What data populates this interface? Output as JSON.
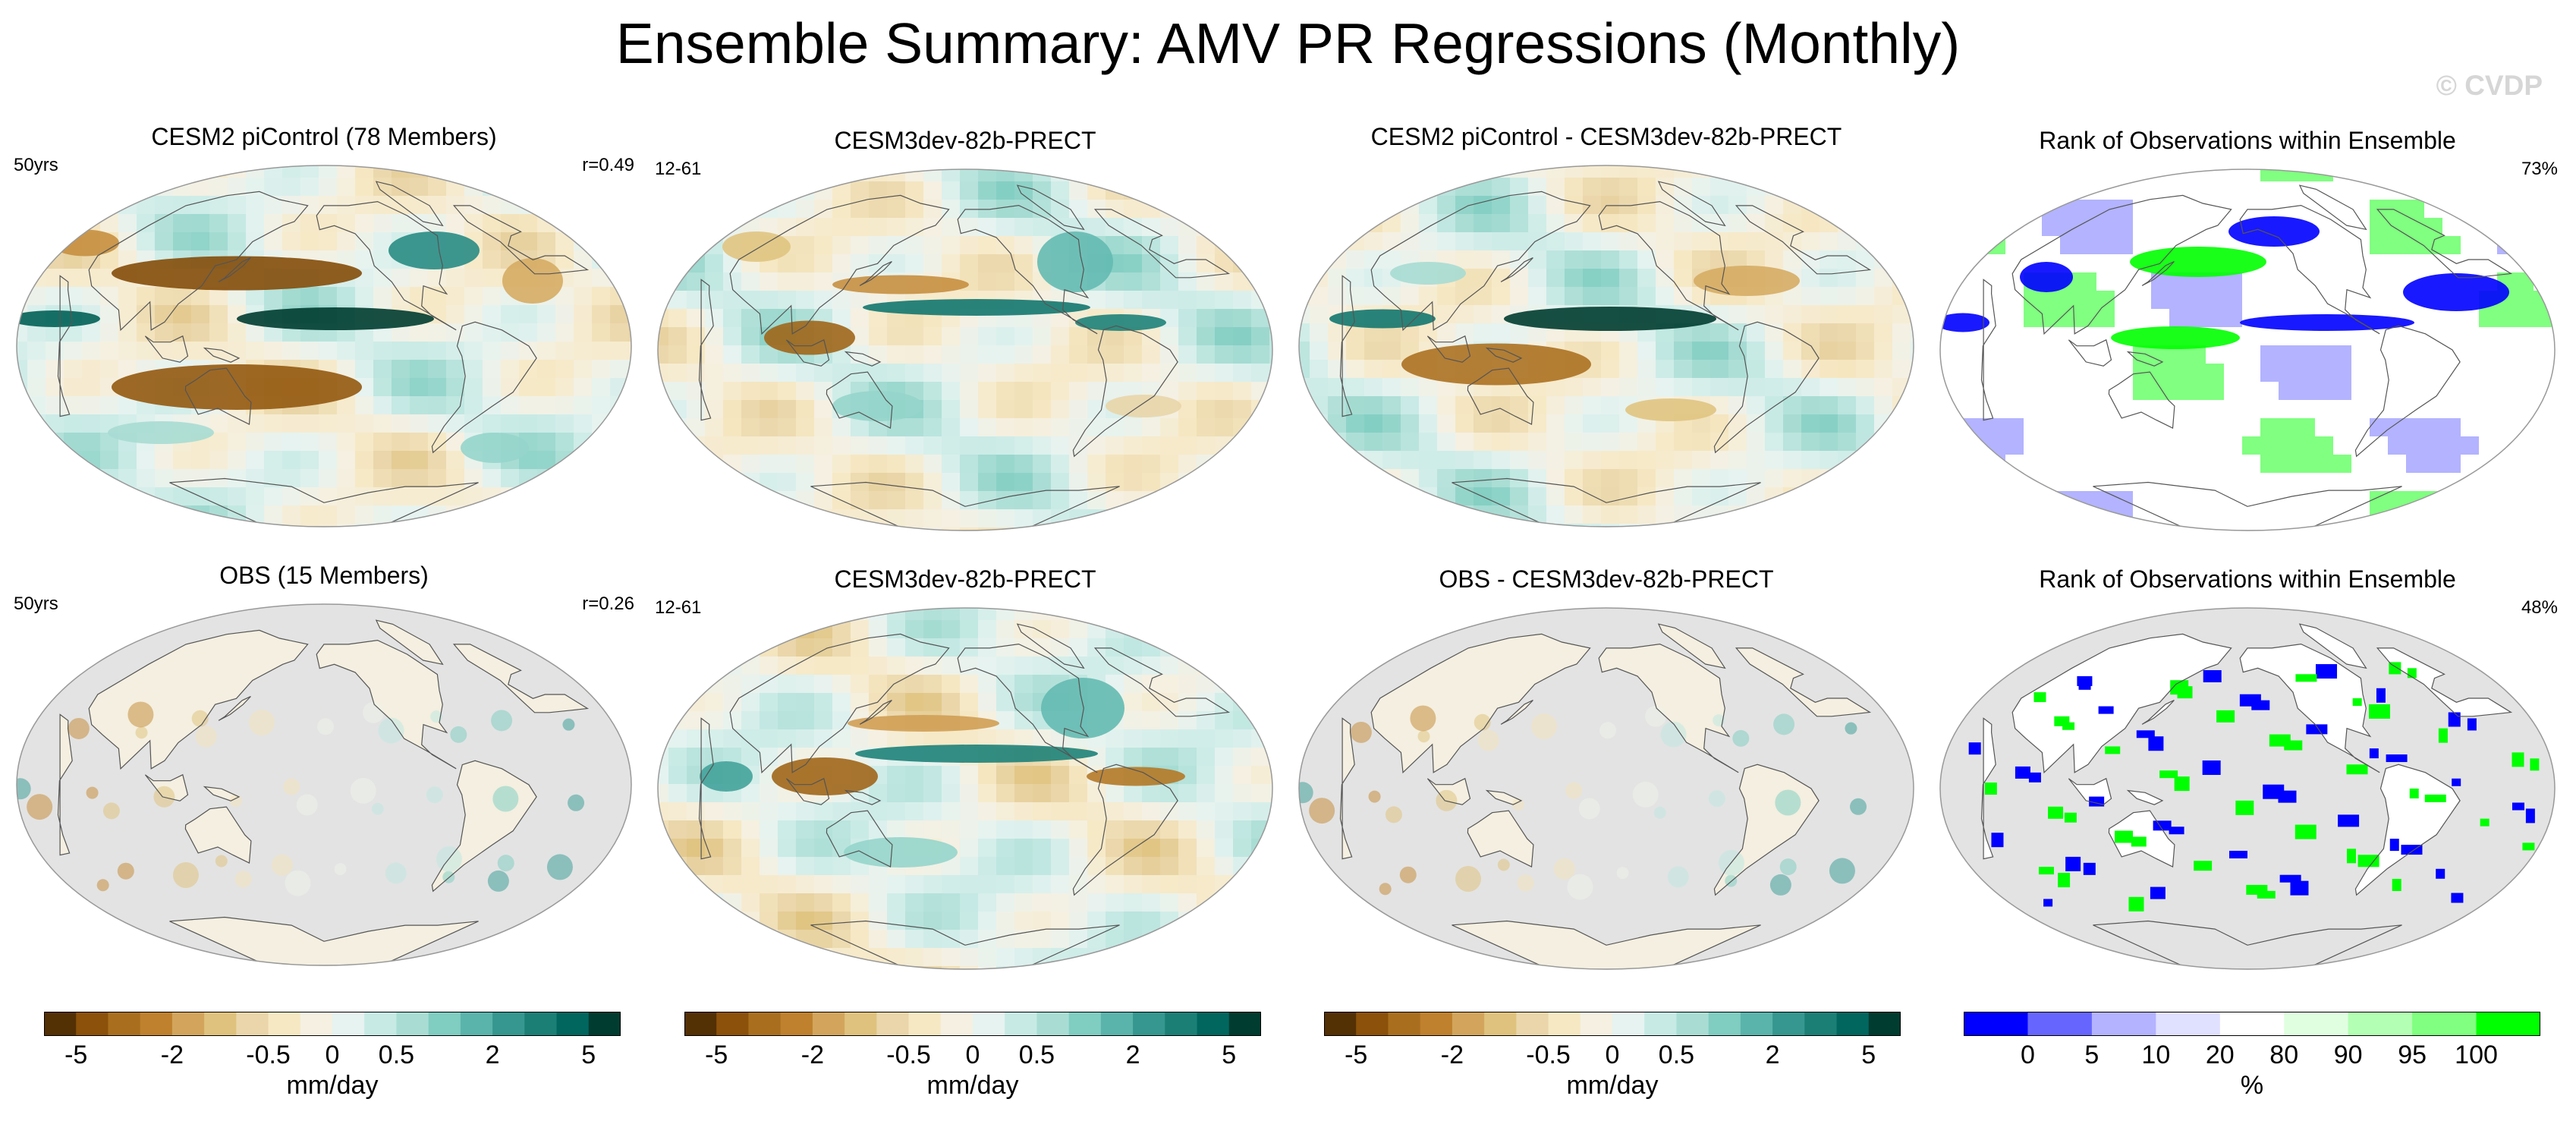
{
  "title": "Ensemble Summary: AMV PR Regressions (Monthly)",
  "watermark": "© CVDP",
  "colors": {
    "div": [
      "#543005",
      "#8c510a",
      "#a96f1f",
      "#bf812d",
      "#d3a55c",
      "#dfc27d",
      "#ead6aa",
      "#f6e8c3",
      "#f5f0e2",
      "#e6f3f0",
      "#c7eae5",
      "#a9ddd4",
      "#80cdc1",
      "#5ab4ac",
      "#35978f",
      "#1b7f76",
      "#01665e",
      "#003c30"
    ],
    "rank": [
      "#0000ff",
      "#6666ff",
      "#b3b3ff",
      "#e0e0ff",
      "#ffffff",
      "#e0ffe0",
      "#b3ffb3",
      "#80ff80",
      "#00ff00"
    ],
    "land_missing": "#e3e3e3"
  },
  "panels": [
    {
      "id": "p1",
      "title": "CESM2 piControl (78 Members)",
      "left_label": "50yrs",
      "right_label": "r=0.49",
      "field": "model",
      "mask": false
    },
    {
      "id": "p2",
      "title": "CESM3dev-82b-PRECT",
      "left_label": "12-61",
      "right_label": "",
      "field": "test",
      "mask": false
    },
    {
      "id": "p3",
      "title": "CESM2 piControl - CESM3dev-82b-PRECT",
      "left_label": "",
      "right_label": "",
      "field": "diff",
      "mask": false
    },
    {
      "id": "p4",
      "title": "Rank of Observations within Ensemble",
      "left_label": "",
      "right_label": "73%",
      "field": "rank",
      "mask": false
    },
    {
      "id": "p5",
      "title": "OBS (15 Members)",
      "left_label": "50yrs",
      "right_label": "r=0.26",
      "field": "obs",
      "mask": true
    },
    {
      "id": "p6",
      "title": "CESM3dev-82b-PRECT",
      "left_label": "12-61",
      "right_label": "",
      "field": "test2",
      "mask": false
    },
    {
      "id": "p7",
      "title": "OBS - CESM3dev-82b-PRECT",
      "left_label": "",
      "right_label": "",
      "field": "obsdiff",
      "mask": true
    },
    {
      "id": "p8",
      "title": "Rank of Observations within Ensemble",
      "left_label": "",
      "right_label": "48%",
      "field": "rankobs",
      "mask": true
    }
  ],
  "colorbars": [
    {
      "type": "div",
      "ticks": [
        "-5",
        "-2",
        "-0.5",
        "0",
        "0.5",
        "2",
        "5"
      ],
      "units": "mm/day"
    },
    {
      "type": "div",
      "ticks": [
        "-5",
        "-2",
        "-0.5",
        "0",
        "0.5",
        "2",
        "5"
      ],
      "units": "mm/day"
    },
    {
      "type": "div",
      "ticks": [
        "-5",
        "-2",
        "-0.5",
        "0",
        "0.5",
        "2",
        "5"
      ],
      "units": "mm/day"
    },
    {
      "type": "rank",
      "ticks": [
        "0",
        "5",
        "10",
        "20",
        "80",
        "90",
        "95",
        "100"
      ],
      "units": "%"
    }
  ]
}
